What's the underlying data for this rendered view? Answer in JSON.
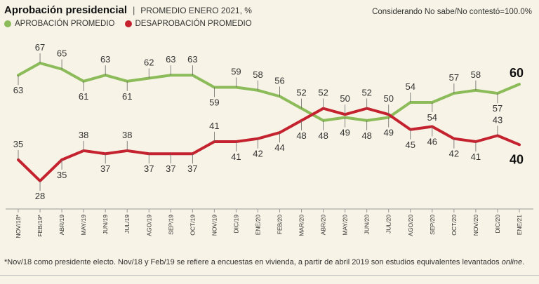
{
  "header": {
    "title": "Aprobación presidencial",
    "separator": "|",
    "subtitle": "PROMEDIO ENERO 2021, %",
    "note": "Considerando No sabe/No contestó=100.0%"
  },
  "footnote": {
    "text": "*Nov/18 como presidente electo. Nov/18 y Feb/19 se refiere a encuestas en vivienda, a partir de abril 2019 son estudios equivalentes levantados ",
    "emph": "online",
    "end": "."
  },
  "chart_data": {
    "type": "line",
    "title": "Aprobación presidencial",
    "categories": [
      "NOV/18*",
      "FEB/19*",
      "ABR/19",
      "MAY/19",
      "JUN/19",
      "JUL/19",
      "AGO/19",
      "SEP/19",
      "OCT/19",
      "NOV/19",
      "DIC/19",
      "ENE/20",
      "FEB/20",
      "MAR/20",
      "ABR/20",
      "MAY/20",
      "JUN/20",
      "JUL/20",
      "AGO/20",
      "SEP/20",
      "OCT/20",
      "NOV/20",
      "DIC/20",
      "ENE/21"
    ],
    "series": [
      {
        "name": "APROBACIÓN PROMEDIO",
        "color": "#8cbb59",
        "values": [
          63,
          67,
          65,
          61,
          63,
          61,
          62,
          63,
          63,
          59,
          59,
          58,
          56,
          52,
          48,
          49,
          48,
          49,
          54,
          54,
          57,
          58,
          57,
          60
        ],
        "label_pos": [
          "below",
          "above",
          "above",
          "below",
          "above",
          "below",
          "above",
          "above",
          "above",
          "below",
          "above",
          "above",
          "above",
          "above",
          "below",
          "below",
          "below",
          "below",
          "above",
          "below",
          "above",
          "above",
          "below",
          "above"
        ]
      },
      {
        "name": "DESAPROBACIÓN PROMEDIO",
        "color": "#c4222e",
        "values": [
          35,
          28,
          35,
          38,
          37,
          38,
          37,
          37,
          37,
          41,
          41,
          42,
          44,
          48,
          52,
          50,
          52,
          50,
          45,
          46,
          42,
          41,
          43,
          40
        ],
        "label_pos": [
          "above",
          "below",
          "below",
          "above",
          "below",
          "above",
          "below",
          "below",
          "below",
          "above",
          "below",
          "below",
          "below",
          "below",
          "above",
          "above",
          "above",
          "above",
          "below",
          "below",
          "below",
          "below",
          "above",
          "below"
        ]
      }
    ],
    "highlight_last": {
      "APROBACIÓN PROMEDIO": "60",
      "DESAPROBACIÓN PROMEDIO": "40"
    },
    "ylim": [
      25,
      70
    ],
    "xlabel": "",
    "ylabel": ""
  }
}
